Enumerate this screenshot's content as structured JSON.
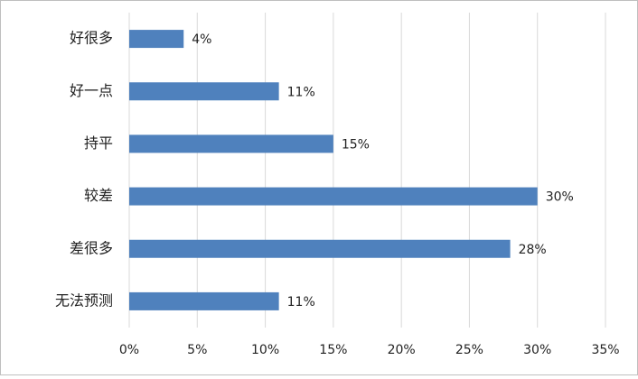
{
  "chart_data": {
    "type": "bar",
    "orientation": "horizontal",
    "categories": [
      "好很多",
      "好一点",
      "持平",
      "较差",
      "差很多",
      "无法预测"
    ],
    "values": [
      4,
      11,
      15,
      30,
      28,
      11
    ],
    "value_labels": [
      "4%",
      "11%",
      "15%",
      "30%",
      "28%",
      "11%"
    ],
    "color": "#4f81bd",
    "xlim": [
      0,
      35
    ],
    "xticks": [
      {
        "value": 0,
        "label": "0%"
      },
      {
        "value": 5,
        "label": "5%"
      },
      {
        "value": 10,
        "label": "10%"
      },
      {
        "value": 15,
        "label": "15%"
      },
      {
        "value": 20,
        "label": "20%"
      },
      {
        "value": 25,
        "label": "25%"
      },
      {
        "value": 30,
        "label": "30%"
      },
      {
        "value": 35,
        "label": "35%"
      }
    ],
    "grid": true
  }
}
